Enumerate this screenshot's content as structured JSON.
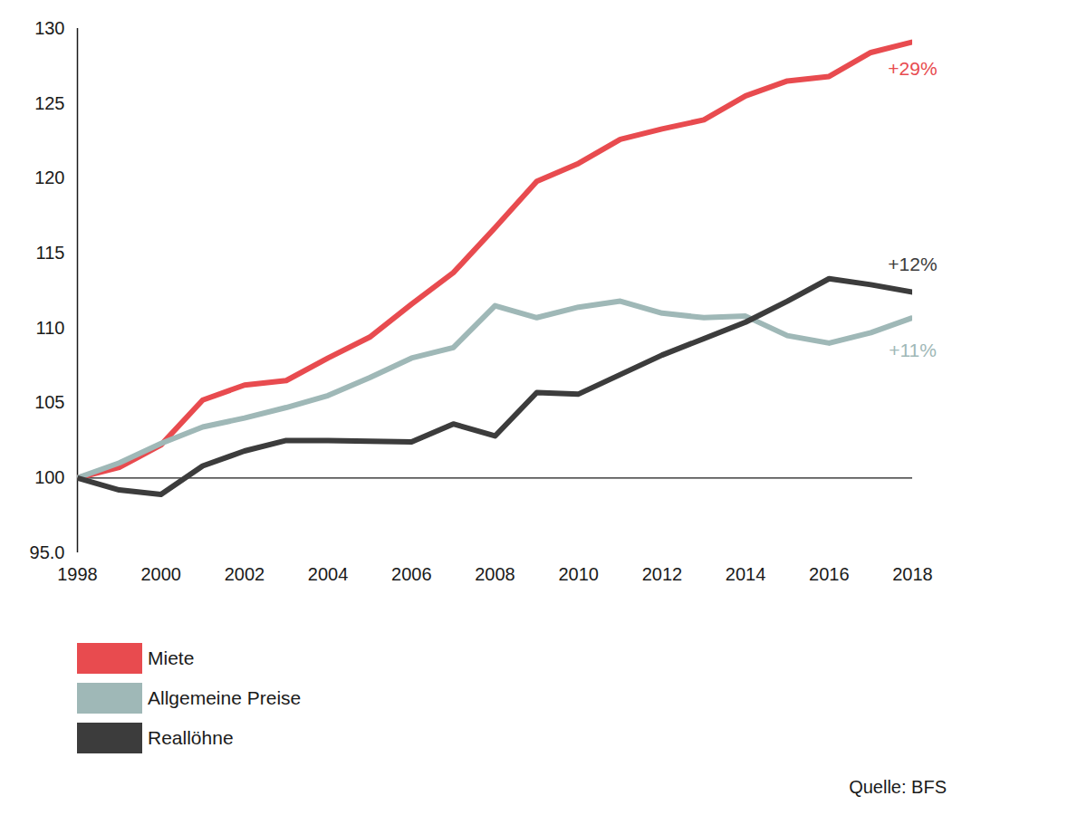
{
  "chart_data": {
    "type": "line",
    "x": [
      1998,
      1999,
      2000,
      2001,
      2002,
      2003,
      2004,
      2005,
      2006,
      2007,
      2008,
      2009,
      2010,
      2011,
      2012,
      2013,
      2014,
      2015,
      2016,
      2017,
      2018
    ],
    "series": [
      {
        "name": "Miete",
        "color": "#e84b4f",
        "values": [
          100,
          100.7,
          102.2,
          105.2,
          106.2,
          106.5,
          108.0,
          109.4,
          111.6,
          113.7,
          116.7,
          119.8,
          121.0,
          122.6,
          123.3,
          123.9,
          125.5,
          126.5,
          126.8,
          128.4,
          129.1
        ]
      },
      {
        "name": "Allgemeine Preise",
        "color": "#9fb8b7",
        "values": [
          100,
          101.0,
          102.3,
          103.4,
          104.0,
          104.7,
          105.5,
          106.7,
          108.0,
          108.7,
          111.5,
          110.7,
          111.4,
          111.8,
          111.0,
          110.7,
          110.8,
          109.5,
          109.0,
          109.7,
          110.7
        ]
      },
      {
        "name": "Reallöhne",
        "color": "#3c3c3c",
        "values": [
          100,
          99.2,
          98.9,
          100.8,
          101.8,
          102.5,
          102.5,
          102.45,
          102.4,
          103.6,
          102.8,
          105.7,
          105.6,
          106.9,
          108.2,
          109.3,
          110.4,
          111.8,
          113.3,
          112.9,
          112.4
        ]
      }
    ],
    "annotations": [
      {
        "text": "+29%",
        "series": "Miete"
      },
      {
        "text": "+12%",
        "series": "Reallöhne"
      },
      {
        "text": "+11%",
        "series": "Allgemeine Preise"
      }
    ],
    "xlim": [
      1998,
      2018
    ],
    "xticks": [
      1998,
      2000,
      2002,
      2004,
      2006,
      2008,
      2010,
      2012,
      2014,
      2016,
      2018
    ],
    "ylim": [
      95,
      130
    ],
    "yticks": [
      {
        "value": 95,
        "label": "95.0"
      },
      100,
      105,
      110,
      115,
      120,
      125,
      130
    ],
    "grid": false,
    "legend": "bottom-left",
    "source": "Quelle: BFS"
  }
}
